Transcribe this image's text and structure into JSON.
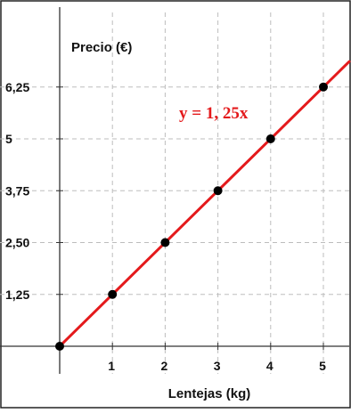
{
  "chart_data": {
    "type": "line",
    "ylabel": "Precio (€)",
    "xlabel": "Lentejas (kg)",
    "x_ticks": [
      "1",
      "2",
      "3",
      "4",
      "5"
    ],
    "y_ticks": [
      "1,25",
      "2,50",
      "3,75",
      "5",
      "6,25"
    ],
    "xlim": [
      0,
      5.5
    ],
    "ylim": [
      0,
      7.3
    ],
    "grid": true,
    "series": [
      {
        "line_equation": "y = 1, 25x",
        "slope": 1.25,
        "color": "#e41a1c",
        "x": [
          0,
          1,
          2,
          3,
          4,
          5
        ],
        "y": [
          0,
          1.25,
          2.5,
          3.75,
          5,
          6.25
        ]
      }
    ]
  },
  "colors": {
    "line": "#e41a1c",
    "points": "#000000",
    "grid": "#bdbdbd",
    "frame": "#222222"
  }
}
